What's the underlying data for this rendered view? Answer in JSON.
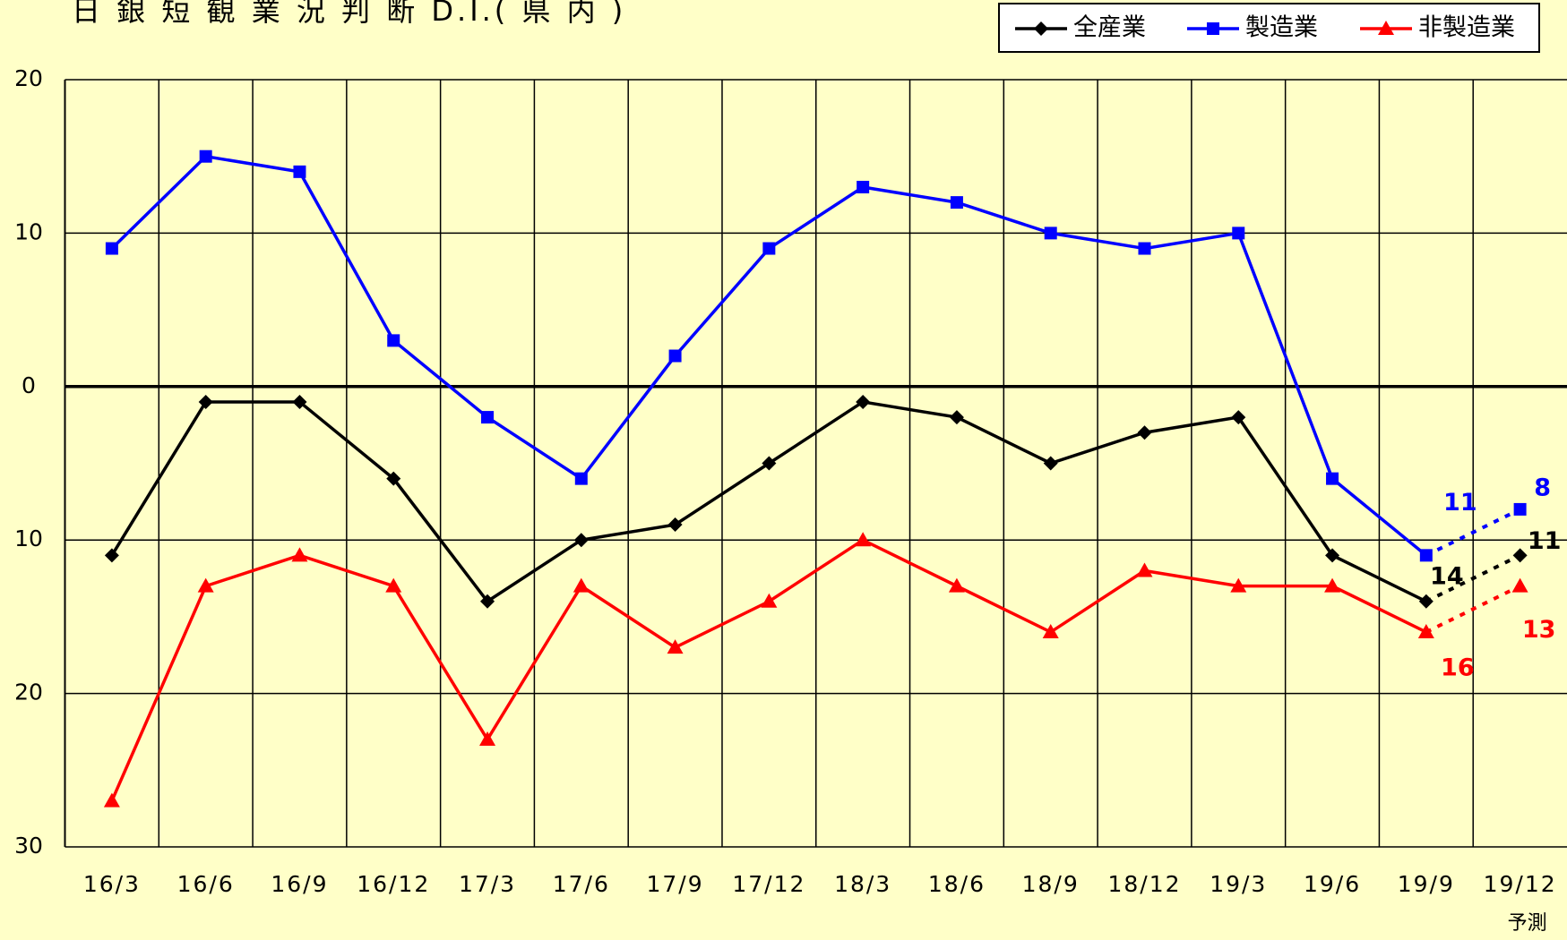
{
  "chart_data": {
    "type": "line",
    "title": "日 銀 短 観 業 況 判 断 D.I.( 県 内 )",
    "categories": [
      "16/3",
      "16/6",
      "16/9",
      "16/12",
      "17/3",
      "17/6",
      "17/9",
      "17/12",
      "18/3",
      "18/6",
      "18/9",
      "18/12",
      "19/3",
      "19/6",
      "19/9",
      "19/12"
    ],
    "annotation": "予測",
    "series": [
      {
        "name": "全産業",
        "color": "#000000",
        "marker": "diamond",
        "values": [
          -11,
          -1,
          -1,
          -6,
          -14,
          -10,
          -9,
          -5,
          -1,
          -2,
          -5,
          -3,
          -2,
          -11,
          -14,
          -11
        ],
        "value_labels": [
          null,
          null,
          null,
          null,
          null,
          null,
          null,
          null,
          null,
          null,
          null,
          null,
          null,
          null,
          "14",
          "11"
        ]
      },
      {
        "name": "製造業",
        "color": "#0000ff",
        "marker": "square",
        "values": [
          9,
          15,
          14,
          3,
          -2,
          -6,
          2,
          9,
          13,
          12,
          10,
          9,
          10,
          -6,
          -11,
          -8
        ],
        "value_labels": [
          null,
          null,
          null,
          null,
          null,
          null,
          null,
          null,
          null,
          null,
          null,
          null,
          null,
          null,
          "11",
          "8"
        ]
      },
      {
        "name": "非製造業",
        "color": "#ff0000",
        "marker": "triangle",
        "values": [
          -27,
          -13,
          -11,
          -13,
          -23,
          -13,
          -17,
          -14,
          -10,
          -13,
          -16,
          -12,
          -13,
          -13,
          -16,
          -13
        ],
        "value_labels": [
          null,
          null,
          null,
          null,
          null,
          null,
          null,
          null,
          null,
          null,
          null,
          null,
          null,
          null,
          "16",
          "13"
        ]
      }
    ],
    "ylim": [
      -30,
      20
    ],
    "yticks": [
      20,
      10,
      0,
      {
        "value": -10,
        "label": "10"
      },
      {
        "value": -20,
        "label": "20"
      },
      {
        "value": -30,
        "label": "30"
      }
    ],
    "grid": true,
    "last_segment_style": "dotted",
    "legend": "top-right"
  }
}
